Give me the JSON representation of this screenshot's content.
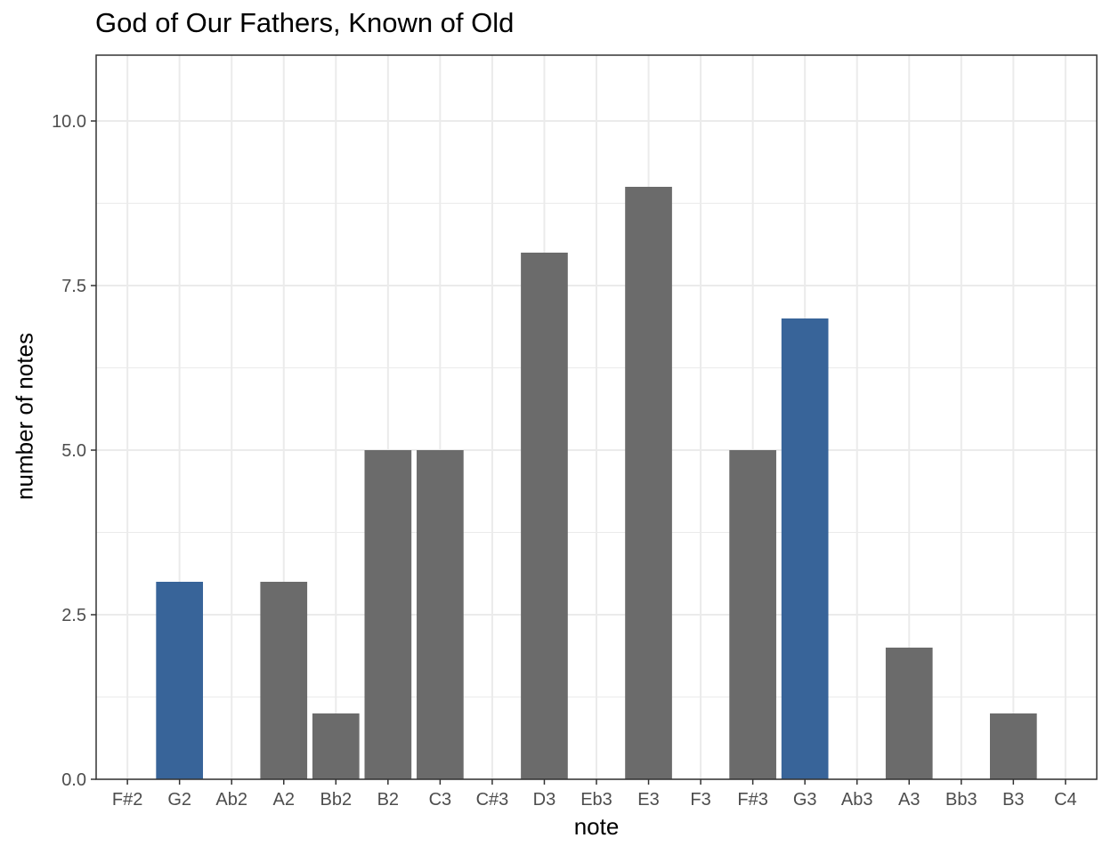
{
  "chart_data": {
    "type": "bar",
    "title": "God of Our Fathers, Known of Old",
    "xlabel": "note",
    "ylabel": "number of notes",
    "categories": [
      "F#2",
      "G2",
      "Ab2",
      "A2",
      "Bb2",
      "B2",
      "C3",
      "C#3",
      "D3",
      "Eb3",
      "E3",
      "F3",
      "F#3",
      "G3",
      "Ab3",
      "A3",
      "Bb3",
      "B3",
      "C4"
    ],
    "values": [
      0,
      3,
      0,
      3,
      1,
      5,
      5,
      0,
      8,
      0,
      9,
      0,
      5,
      7,
      0,
      2,
      0,
      1,
      0
    ],
    "highlighted": [
      "G2",
      "G3"
    ],
    "ylim": [
      0,
      11
    ],
    "yticks": [
      "0.0",
      "2.5",
      "5.0",
      "7.5",
      "10.0"
    ],
    "grid": true,
    "colors": {
      "bar": "#6b6b6b",
      "highlight": "#386499",
      "grid": "#ebebeb",
      "panel_border": "#333333"
    }
  }
}
